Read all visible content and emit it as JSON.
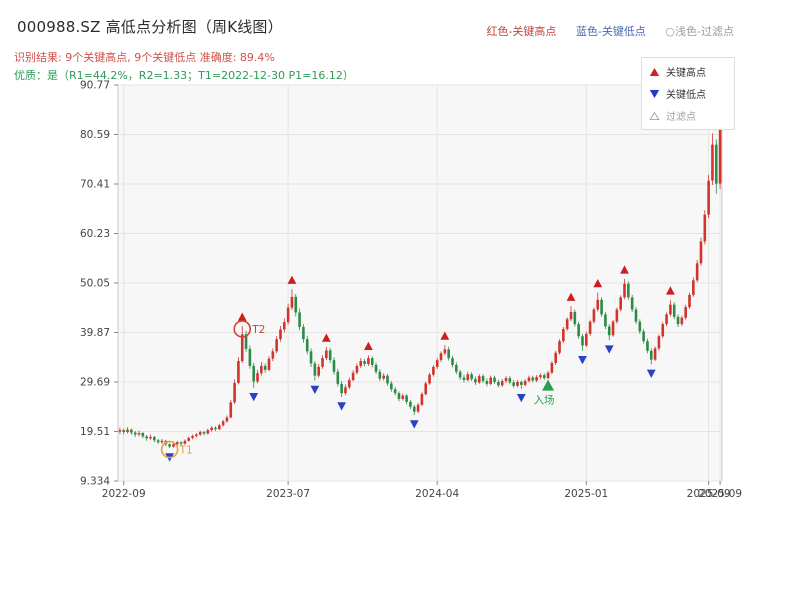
{
  "header": {
    "title": "000988.SZ 高低点分析图（周K线图）",
    "top_legend": [
      {
        "label": "红色-关键高点",
        "color": "#c4453c"
      },
      {
        "label": "蓝色-关键低点",
        "color": "#4a67b0"
      },
      {
        "label": "○浅色-过滤点",
        "color": "#9a9a9a"
      }
    ],
    "result_line": "识别结果: 9个关键高点, 9个关键低点  准确度: 89.4%",
    "quality_line": "优质：是（R1=44.2%，R2=1.33；T1=2022-12-30 P1=16.12）"
  },
  "legend_box": {
    "items": [
      {
        "label": "关键高点",
        "marker": "up-triangle",
        "color": "#c62828"
      },
      {
        "label": "关键低点",
        "marker": "down-triangle",
        "color": "#2438c8"
      },
      {
        "label": "过滤点",
        "marker": "open-up-triangle",
        "color": "#a0a0a0"
      }
    ]
  },
  "chart_data": {
    "type": "candlestick",
    "symbol": "000988.SZ",
    "period": "weekly",
    "up_color": "#d0342c",
    "down_color": "#2e8b46",
    "key_high_color": "#cc1f1f",
    "key_low_color": "#2741c8",
    "grid": true,
    "plot_bg": "#f7f7f7",
    "y_min": 9.334,
    "y_max": 90.77,
    "y_ticks": [
      90.77,
      80.59,
      70.41,
      60.23,
      50.05,
      39.87,
      29.69,
      19.51,
      9.334
    ],
    "x_ticks": [
      {
        "label": "2022-09",
        "i": 1
      },
      {
        "label": "2023-07",
        "i": 44
      },
      {
        "label": "2024-04",
        "i": 83
      },
      {
        "label": "2025-01",
        "i": 122
      },
      {
        "label": "2025-09",
        "i": 154
      },
      {
        "label": "2025-09",
        "i": 157
      }
    ],
    "candles": [
      [
        19.5,
        20.3,
        19.0,
        19.8
      ],
      [
        19.8,
        20.1,
        18.9,
        19.4
      ],
      [
        19.4,
        20.4,
        19.1,
        19.9
      ],
      [
        19.9,
        20.1,
        18.8,
        19.3
      ],
      [
        19.3,
        19.6,
        18.4,
        18.9
      ],
      [
        18.9,
        19.7,
        18.5,
        19.2
      ],
      [
        19.2,
        19.4,
        18.1,
        18.5
      ],
      [
        18.5,
        18.8,
        17.6,
        18.1
      ],
      [
        18.1,
        18.9,
        17.8,
        18.4
      ],
      [
        18.4,
        18.6,
        17.3,
        17.7
      ],
      [
        17.7,
        18.0,
        16.9,
        17.3
      ],
      [
        17.3,
        18.0,
        17.0,
        17.6
      ],
      [
        17.6,
        17.8,
        16.5,
        16.9
      ],
      [
        16.9,
        17.1,
        16.1,
        16.4
      ],
      [
        16.4,
        17.2,
        16.2,
        16.9
      ],
      [
        16.9,
        17.6,
        16.6,
        17.3
      ],
      [
        17.3,
        17.5,
        16.6,
        17.0
      ],
      [
        17.0,
        17.9,
        16.8,
        17.6
      ],
      [
        17.6,
        18.5,
        17.4,
        18.2
      ],
      [
        18.2,
        18.9,
        17.9,
        18.6
      ],
      [
        18.6,
        19.2,
        18.3,
        18.9
      ],
      [
        18.9,
        19.7,
        18.6,
        19.4
      ],
      [
        19.4,
        19.6,
        18.7,
        19.1
      ],
      [
        19.1,
        20.1,
        18.9,
        19.8
      ],
      [
        19.8,
        20.6,
        19.5,
        20.3
      ],
      [
        20.3,
        20.6,
        19.6,
        20.0
      ],
      [
        20.0,
        21.1,
        19.8,
        20.8
      ],
      [
        20.8,
        21.9,
        20.5,
        21.6
      ],
      [
        21.6,
        22.8,
        21.3,
        22.4
      ],
      [
        22.4,
        26.0,
        22.2,
        25.5
      ],
      [
        25.5,
        30.2,
        25.2,
        29.5
      ],
      [
        29.5,
        34.8,
        29.2,
        34.0
      ],
      [
        34.0,
        41.2,
        33.6,
        39.5
      ],
      [
        39.5,
        40.2,
        35.8,
        36.5
      ],
      [
        36.5,
        37.2,
        32.4,
        33.0
      ],
      [
        33.0,
        33.6,
        28.5,
        29.8
      ],
      [
        29.8,
        32.2,
        29.4,
        31.5
      ],
      [
        31.5,
        33.8,
        31.0,
        33.0
      ],
      [
        33.0,
        33.5,
        31.6,
        32.2
      ],
      [
        32.2,
        35.0,
        31.9,
        34.5
      ],
      [
        34.5,
        36.6,
        34.0,
        36.0
      ],
      [
        36.0,
        39.1,
        35.6,
        38.5
      ],
      [
        38.5,
        41.2,
        38.0,
        40.5
      ],
      [
        40.5,
        42.8,
        39.9,
        42.0
      ],
      [
        42.0,
        45.8,
        41.5,
        45.0
      ],
      [
        45.0,
        48.8,
        44.5,
        47.2
      ],
      [
        47.2,
        47.8,
        43.2,
        44.0
      ],
      [
        44.0,
        44.8,
        40.3,
        41.0
      ],
      [
        41.0,
        41.6,
        37.8,
        38.5
      ],
      [
        38.5,
        39.2,
        35.4,
        36.0
      ],
      [
        36.0,
        36.6,
        32.8,
        33.5
      ],
      [
        33.5,
        34.0,
        30.0,
        31.0
      ],
      [
        31.0,
        33.4,
        30.6,
        32.8
      ],
      [
        32.8,
        35.2,
        32.4,
        34.6
      ],
      [
        34.6,
        36.9,
        34.2,
        36.2
      ],
      [
        36.2,
        36.7,
        33.6,
        34.2
      ],
      [
        34.2,
        34.8,
        31.2,
        31.8
      ],
      [
        31.8,
        32.4,
        28.8,
        29.3
      ],
      [
        29.3,
        29.9,
        26.6,
        27.4
      ],
      [
        27.4,
        29.2,
        27.0,
        28.6
      ],
      [
        28.6,
        30.6,
        28.2,
        30.1
      ],
      [
        30.1,
        32.1,
        29.8,
        31.6
      ],
      [
        31.6,
        33.5,
        31.2,
        33.0
      ],
      [
        33.0,
        34.6,
        32.6,
        34.0
      ],
      [
        34.0,
        34.4,
        32.9,
        33.4
      ],
      [
        33.4,
        35.2,
        33.0,
        34.6
      ],
      [
        34.6,
        35.0,
        32.7,
        33.2
      ],
      [
        33.2,
        33.7,
        31.3,
        31.8
      ],
      [
        31.8,
        32.3,
        29.9,
        30.4
      ],
      [
        30.4,
        31.5,
        30.0,
        31.0
      ],
      [
        31.0,
        31.4,
        28.9,
        29.4
      ],
      [
        29.4,
        29.9,
        27.7,
        28.2
      ],
      [
        28.2,
        28.7,
        26.9,
        27.4
      ],
      [
        27.4,
        27.8,
        25.7,
        26.2
      ],
      [
        26.2,
        27.3,
        25.9,
        26.9
      ],
      [
        26.9,
        27.2,
        25.1,
        25.6
      ],
      [
        25.6,
        26.0,
        24.1,
        24.6
      ],
      [
        24.6,
        25.0,
        22.9,
        23.6
      ],
      [
        23.6,
        25.4,
        23.3,
        25.0
      ],
      [
        25.0,
        27.6,
        24.7,
        27.2
      ],
      [
        27.2,
        29.8,
        26.9,
        29.4
      ],
      [
        29.4,
        31.6,
        29.1,
        31.2
      ],
      [
        31.2,
        33.2,
        30.8,
        32.8
      ],
      [
        32.8,
        34.6,
        32.4,
        34.2
      ],
      [
        34.2,
        36.0,
        33.8,
        35.6
      ],
      [
        35.6,
        37.3,
        35.2,
        36.4
      ],
      [
        36.4,
        36.9,
        34.1,
        34.6
      ],
      [
        34.6,
        35.1,
        32.7,
        33.2
      ],
      [
        33.2,
        33.7,
        31.3,
        31.8
      ],
      [
        31.8,
        32.2,
        30.1,
        30.6
      ],
      [
        30.6,
        31.2,
        29.6,
        30.1
      ],
      [
        30.1,
        31.8,
        29.8,
        31.3
      ],
      [
        31.3,
        31.7,
        29.9,
        30.3
      ],
      [
        30.3,
        30.8,
        29.1,
        29.6
      ],
      [
        29.6,
        31.3,
        29.3,
        30.9
      ],
      [
        30.9,
        31.3,
        29.5,
        29.9
      ],
      [
        29.9,
        30.4,
        28.8,
        29.3
      ],
      [
        29.3,
        31.0,
        29.0,
        30.6
      ],
      [
        30.6,
        31.0,
        29.3,
        29.7
      ],
      [
        29.7,
        30.2,
        28.6,
        29.0
      ],
      [
        29.0,
        30.3,
        28.7,
        29.9
      ],
      [
        29.9,
        30.9,
        29.5,
        30.5
      ],
      [
        30.5,
        30.9,
        29.2,
        29.6
      ],
      [
        29.6,
        30.1,
        28.5,
        28.9
      ],
      [
        28.9,
        30.1,
        28.6,
        29.7
      ],
      [
        29.7,
        30.0,
        28.3,
        29.1
      ],
      [
        29.1,
        30.3,
        28.8,
        29.9
      ],
      [
        29.9,
        31.0,
        29.6,
        30.6
      ],
      [
        30.6,
        31.0,
        29.6,
        30.0
      ],
      [
        30.0,
        31.1,
        29.7,
        30.7
      ],
      [
        30.7,
        31.5,
        30.3,
        31.1
      ],
      [
        31.1,
        31.5,
        30.1,
        30.5
      ],
      [
        30.5,
        32.0,
        30.2,
        31.6
      ],
      [
        31.6,
        34.0,
        31.3,
        33.6
      ],
      [
        33.6,
        36.1,
        33.2,
        35.7
      ],
      [
        35.7,
        38.5,
        35.3,
        38.1
      ],
      [
        38.1,
        41.0,
        37.7,
        40.6
      ],
      [
        40.6,
        43.0,
        40.2,
        42.6
      ],
      [
        42.6,
        45.3,
        42.2,
        44.1
      ],
      [
        44.1,
        44.6,
        41.1,
        41.6
      ],
      [
        41.6,
        42.1,
        38.6,
        39.1
      ],
      [
        39.1,
        39.6,
        36.1,
        37.2
      ],
      [
        37.2,
        40.0,
        36.9,
        39.6
      ],
      [
        39.6,
        42.5,
        39.2,
        42.1
      ],
      [
        42.1,
        45.0,
        41.7,
        44.6
      ],
      [
        44.6,
        48.1,
        44.2,
        46.6
      ],
      [
        46.6,
        47.1,
        43.1,
        43.6
      ],
      [
        43.6,
        44.1,
        40.6,
        41.1
      ],
      [
        41.1,
        41.6,
        38.3,
        39.3
      ],
      [
        39.3,
        42.5,
        39.0,
        42.1
      ],
      [
        42.1,
        45.0,
        41.7,
        44.6
      ],
      [
        44.6,
        47.5,
        44.2,
        47.1
      ],
      [
        47.1,
        50.9,
        46.7,
        49.9
      ],
      [
        49.9,
        50.4,
        46.6,
        47.1
      ],
      [
        47.1,
        47.6,
        44.1,
        44.6
      ],
      [
        44.6,
        45.1,
        41.6,
        42.1
      ],
      [
        42.1,
        42.6,
        39.6,
        40.1
      ],
      [
        40.1,
        40.6,
        37.6,
        38.1
      ],
      [
        38.1,
        38.6,
        35.6,
        36.1
      ],
      [
        36.1,
        36.6,
        33.3,
        34.3
      ],
      [
        34.3,
        37.0,
        34.0,
        36.6
      ],
      [
        36.6,
        39.5,
        36.2,
        39.1
      ],
      [
        39.1,
        42.0,
        38.7,
        41.6
      ],
      [
        41.6,
        44.0,
        41.2,
        43.6
      ],
      [
        43.6,
        46.6,
        43.2,
        45.6
      ],
      [
        45.6,
        46.1,
        42.6,
        43.1
      ],
      [
        43.1,
        43.6,
        41.0,
        41.6
      ],
      [
        41.6,
        43.3,
        41.2,
        42.9
      ],
      [
        42.9,
        45.6,
        42.5,
        45.1
      ],
      [
        45.1,
        48.1,
        44.7,
        47.6
      ],
      [
        47.6,
        51.2,
        47.2,
        50.6
      ],
      [
        50.6,
        54.8,
        50.2,
        54.1
      ],
      [
        54.1,
        59.4,
        53.6,
        58.6
      ],
      [
        58.6,
        65.0,
        58.0,
        64.1
      ],
      [
        64.1,
        72.3,
        63.4,
        71.1
      ],
      [
        71.1,
        80.8,
        70.2,
        78.5
      ],
      [
        78.5,
        79.6,
        68.4,
        70.5
      ],
      [
        70.5,
        84.3,
        69.4,
        82.0
      ]
    ],
    "key_highs": [
      {
        "i": 32,
        "price": 41.2
      },
      {
        "i": 45,
        "price": 48.8
      },
      {
        "i": 54,
        "price": 36.9
      },
      {
        "i": 65,
        "price": 35.2
      },
      {
        "i": 85,
        "price": 37.3
      },
      {
        "i": 118,
        "price": 45.3
      },
      {
        "i": 125,
        "price": 48.1
      },
      {
        "i": 132,
        "price": 50.9
      },
      {
        "i": 144,
        "price": 46.6
      }
    ],
    "key_lows": [
      {
        "i": 13,
        "price": 16.1
      },
      {
        "i": 35,
        "price": 28.5
      },
      {
        "i": 51,
        "price": 30.0
      },
      {
        "i": 58,
        "price": 26.6
      },
      {
        "i": 77,
        "price": 22.9
      },
      {
        "i": 105,
        "price": 28.3
      },
      {
        "i": 121,
        "price": 36.1
      },
      {
        "i": 128,
        "price": 38.3
      },
      {
        "i": 139,
        "price": 33.3
      }
    ],
    "entry": {
      "i": 112,
      "price": 30.6,
      "label": "入场",
      "color": "#27a04b"
    },
    "annotations": [
      {
        "i": 13,
        "price": 15.8,
        "label": "T1",
        "color": "#e8a23b",
        "type": "circle"
      },
      {
        "i": 32,
        "price": 40.6,
        "label": "T2",
        "color": "#cc4433",
        "type": "circle"
      }
    ]
  }
}
